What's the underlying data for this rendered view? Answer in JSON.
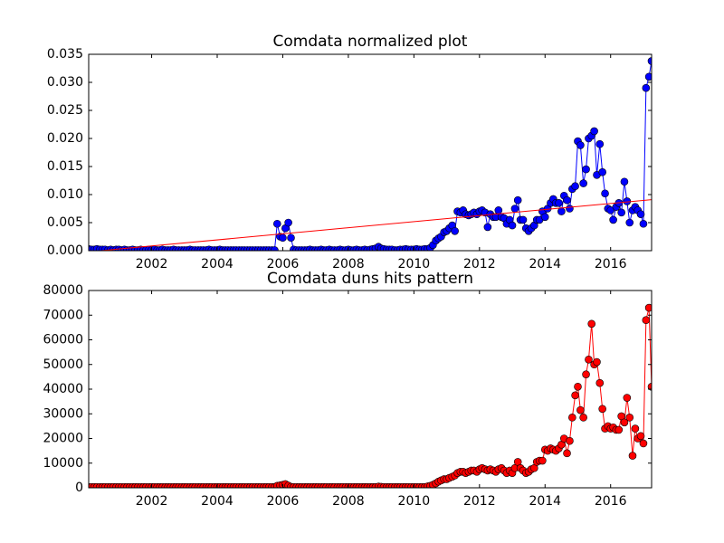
{
  "chart_data": [
    {
      "type": "line",
      "title": "Comdata normalized plot",
      "x": [
        2000.08,
        2000.17,
        2000.25,
        2000.33,
        2000.42,
        2000.5,
        2000.58,
        2000.67,
        2000.75,
        2000.83,
        2000.92,
        2001,
        2001.08,
        2001.17,
        2001.25,
        2001.33,
        2001.42,
        2001.5,
        2001.58,
        2001.67,
        2001.75,
        2001.83,
        2001.92,
        2002,
        2002.08,
        2002.17,
        2002.25,
        2002.33,
        2002.42,
        2002.5,
        2002.58,
        2002.67,
        2002.75,
        2002.83,
        2002.92,
        2003,
        2003.08,
        2003.17,
        2003.25,
        2003.33,
        2003.42,
        2003.5,
        2003.58,
        2003.67,
        2003.75,
        2003.83,
        2003.92,
        2004,
        2004.08,
        2004.17,
        2004.25,
        2004.33,
        2004.42,
        2004.5,
        2004.58,
        2004.67,
        2004.75,
        2004.83,
        2004.92,
        2005,
        2005.08,
        2005.17,
        2005.25,
        2005.33,
        2005.42,
        2005.5,
        2005.58,
        2005.67,
        2005.75,
        2005.83,
        2005.92,
        2006,
        2006.08,
        2006.17,
        2006.25,
        2006.33,
        2006.42,
        2006.5,
        2006.58,
        2006.67,
        2006.75,
        2006.83,
        2006.92,
        2007,
        2007.08,
        2007.17,
        2007.25,
        2007.33,
        2007.42,
        2007.5,
        2007.58,
        2007.67,
        2007.75,
        2007.83,
        2007.92,
        2008,
        2008.08,
        2008.17,
        2008.25,
        2008.33,
        2008.42,
        2008.5,
        2008.58,
        2008.67,
        2008.75,
        2008.83,
        2008.92,
        2009,
        2009.08,
        2009.17,
        2009.25,
        2009.33,
        2009.42,
        2009.5,
        2009.58,
        2009.67,
        2009.75,
        2009.83,
        2009.92,
        2010,
        2010.08,
        2010.17,
        2010.25,
        2010.33,
        2010.42,
        2010.5,
        2010.58,
        2010.67,
        2010.75,
        2010.83,
        2010.92,
        2011,
        2011.08,
        2011.17,
        2011.25,
        2011.33,
        2011.42,
        2011.5,
        2011.58,
        2011.67,
        2011.75,
        2011.83,
        2011.92,
        2012,
        2012.08,
        2012.17,
        2012.25,
        2012.33,
        2012.42,
        2012.5,
        2012.58,
        2012.67,
        2012.75,
        2012.83,
        2012.92,
        2013,
        2013.08,
        2013.17,
        2013.25,
        2013.33,
        2013.42,
        2013.5,
        2013.58,
        2013.67,
        2013.75,
        2013.83,
        2013.92,
        2014,
        2014.08,
        2014.17,
        2014.25,
        2014.33,
        2014.42,
        2014.5,
        2014.58,
        2014.67,
        2014.75,
        2014.83,
        2014.92,
        2015,
        2015.08,
        2015.17,
        2015.25,
        2015.33,
        2015.42,
        2015.5,
        2015.58,
        2015.67,
        2015.75,
        2015.83,
        2015.92,
        2016,
        2016.08,
        2016.17,
        2016.25,
        2016.33,
        2016.42,
        2016.5,
        2016.58,
        2016.67,
        2016.75,
        2016.83,
        2016.92,
        2017,
        2017.08,
        2017.17,
        2017.25
      ],
      "series": [
        {
          "color": "#0000ff",
          "marker": true,
          "values": [
            0.0003,
            0.0002,
            0.0002,
            0.0003,
            0.0002,
            0.0002,
            0.0002,
            0.0001,
            0.0002,
            0.0001,
            0.0002,
            0.0002,
            0.0001,
            0.0002,
            0.0001,
            0.0001,
            0.0002,
            0.0001,
            0.0001,
            0.0002,
            0.0001,
            0.0001,
            0.0002,
            0.0001,
            0.0002,
            0.0001,
            0.0001,
            0.0002,
            0.0001,
            0.0001,
            0.0001,
            0.0002,
            0.0001,
            0.0001,
            0.0001,
            0.0001,
            0.0001,
            0.0002,
            0.0001,
            0.0001,
            0.0001,
            0.0001,
            0.0001,
            0.0001,
            0.0002,
            0.0001,
            0.0001,
            0.0001,
            0.0002,
            0.0001,
            0.0001,
            0.0001,
            0.0001,
            0.0001,
            0.0001,
            0.0001,
            0.0001,
            0.0001,
            0.0001,
            0.0001,
            0.0001,
            0.0001,
            0.0001,
            0.0001,
            0.0001,
            0.0001,
            0.0001,
            0.0001,
            0.0001,
            0.0048,
            0.0025,
            0.0023,
            0.004,
            0.005,
            0.0023,
            0.0002,
            0.0001,
            0.0001,
            0.0001,
            0.0001,
            0.0001,
            0.0002,
            0.0001,
            0.0001,
            0.0001,
            0.0002,
            0.0001,
            0.0001,
            0.0002,
            0.0001,
            0.0001,
            0.0001,
            0.0002,
            0.0001,
            0.0001,
            0.0002,
            0.0001,
            0.0001,
            0.0002,
            0.0001,
            0.0001,
            0.0002,
            0.0001,
            0.0002,
            0.0003,
            0.0004,
            0.0007,
            0.0004,
            0.0003,
            0.0002,
            0.0002,
            0.0002,
            0.0001,
            0.0001,
            0.0002,
            0.0002,
            0.0003,
            0.0002,
            0.0002,
            0.0002,
            0.0003,
            0.0002,
            0.0002,
            0.0003,
            0.0003,
            0.0005,
            0.001,
            0.0018,
            0.0022,
            0.0025,
            0.0033,
            0.0035,
            0.004,
            0.0045,
            0.0035,
            0.007,
            0.0068,
            0.0072,
            0.0065,
            0.0063,
            0.0065,
            0.0068,
            0.0065,
            0.007,
            0.0072,
            0.0068,
            0.0042,
            0.0065,
            0.006,
            0.006,
            0.0072,
            0.006,
            0.0058,
            0.0048,
            0.0055,
            0.0045,
            0.0075,
            0.009,
            0.0055,
            0.0055,
            0.004,
            0.0035,
            0.004,
            0.0045,
            0.0055,
            0.0055,
            0.007,
            0.006,
            0.0075,
            0.0085,
            0.0092,
            0.0085,
            0.0085,
            0.007,
            0.0098,
            0.009,
            0.0075,
            0.011,
            0.0115,
            0.0195,
            0.0188,
            0.012,
            0.0145,
            0.02,
            0.0205,
            0.0213,
            0.0135,
            0.019,
            0.014,
            0.0102,
            0.0075,
            0.0072,
            0.0055,
            0.0078,
            0.0085,
            0.0068,
            0.0123,
            0.0088,
            0.005,
            0.0072,
            0.0078,
            0.0072,
            0.0065,
            0.0048,
            0.029,
            0.031,
            0.0338
          ]
        },
        {
          "color": "#ff0000",
          "marker": false,
          "x": [
            2000.08,
            2017.25
          ],
          "values": [
            -0.0002,
            0.0091
          ]
        }
      ],
      "xlim": [
        2000.08,
        2017.25
      ],
      "xticks": [
        2002,
        2004,
        2006,
        2008,
        2010,
        2012,
        2014,
        2016
      ],
      "ylim": [
        0,
        0.035
      ],
      "yticks": [
        {
          "value": 0,
          "label": "0.000"
        },
        {
          "value": 0.005,
          "label": "0.005"
        },
        {
          "value": 0.01,
          "label": "0.010"
        },
        {
          "value": 0.015,
          "label": "0.015"
        },
        {
          "value": 0.02,
          "label": "0.020"
        },
        {
          "value": 0.025,
          "label": "0.025"
        },
        {
          "value": 0.03,
          "label": "0.030"
        },
        {
          "value": 0.035,
          "label": "0.035"
        }
      ]
    },
    {
      "type": "line",
      "title": "Comdata duns hits pattern",
      "x": [
        2000.08,
        2000.17,
        2000.25,
        2000.33,
        2000.42,
        2000.5,
        2000.58,
        2000.67,
        2000.75,
        2000.83,
        2000.92,
        2001,
        2001.08,
        2001.17,
        2001.25,
        2001.33,
        2001.42,
        2001.5,
        2001.58,
        2001.67,
        2001.75,
        2001.83,
        2001.92,
        2002,
        2002.08,
        2002.17,
        2002.25,
        2002.33,
        2002.42,
        2002.5,
        2002.58,
        2002.67,
        2002.75,
        2002.83,
        2002.92,
        2003,
        2003.08,
        2003.17,
        2003.25,
        2003.33,
        2003.42,
        2003.5,
        2003.58,
        2003.67,
        2003.75,
        2003.83,
        2003.92,
        2004,
        2004.08,
        2004.17,
        2004.25,
        2004.33,
        2004.42,
        2004.5,
        2004.58,
        2004.67,
        2004.75,
        2004.83,
        2004.92,
        2005,
        2005.08,
        2005.17,
        2005.25,
        2005.33,
        2005.42,
        2005.5,
        2005.58,
        2005.67,
        2005.75,
        2005.83,
        2005.92,
        2006,
        2006.08,
        2006.17,
        2006.25,
        2006.33,
        2006.42,
        2006.5,
        2006.58,
        2006.67,
        2006.75,
        2006.83,
        2006.92,
        2007,
        2007.08,
        2007.17,
        2007.25,
        2007.33,
        2007.42,
        2007.5,
        2007.58,
        2007.67,
        2007.75,
        2007.83,
        2007.92,
        2008,
        2008.08,
        2008.17,
        2008.25,
        2008.33,
        2008.42,
        2008.5,
        2008.58,
        2008.67,
        2008.75,
        2008.83,
        2008.92,
        2009,
        2009.08,
        2009.17,
        2009.25,
        2009.33,
        2009.42,
        2009.5,
        2009.58,
        2009.67,
        2009.75,
        2009.83,
        2009.92,
        2010,
        2010.08,
        2010.17,
        2010.25,
        2010.33,
        2010.42,
        2010.5,
        2010.58,
        2010.67,
        2010.75,
        2010.83,
        2010.92,
        2011,
        2011.08,
        2011.17,
        2011.25,
        2011.33,
        2011.42,
        2011.5,
        2011.58,
        2011.67,
        2011.75,
        2011.83,
        2011.92,
        2012,
        2012.08,
        2012.17,
        2012.25,
        2012.33,
        2012.42,
        2012.5,
        2012.58,
        2012.67,
        2012.75,
        2012.83,
        2012.92,
        2013,
        2013.08,
        2013.17,
        2013.25,
        2013.33,
        2013.42,
        2013.5,
        2013.58,
        2013.67,
        2013.75,
        2013.83,
        2013.92,
        2014,
        2014.08,
        2014.17,
        2014.25,
        2014.33,
        2014.42,
        2014.5,
        2014.58,
        2014.67,
        2014.75,
        2014.83,
        2014.92,
        2015,
        2015.08,
        2015.17,
        2015.25,
        2015.33,
        2015.42,
        2015.5,
        2015.58,
        2015.67,
        2015.75,
        2015.83,
        2015.92,
        2016,
        2016.08,
        2016.17,
        2016.25,
        2016.33,
        2016.42,
        2016.5,
        2016.58,
        2016.67,
        2016.75,
        2016.83,
        2016.92,
        2017,
        2017.08,
        2017.17,
        2017.25
      ],
      "series": [
        {
          "color": "#ff0000",
          "marker": true,
          "values": [
            300,
            300,
            300,
            300,
            300,
            300,
            300,
            300,
            300,
            300,
            300,
            300,
            300,
            300,
            300,
            300,
            300,
            300,
            300,
            300,
            300,
            300,
            300,
            300,
            300,
            300,
            300,
            300,
            300,
            300,
            300,
            300,
            300,
            300,
            300,
            300,
            300,
            300,
            300,
            300,
            300,
            300,
            300,
            300,
            300,
            300,
            300,
            300,
            300,
            300,
            300,
            300,
            300,
            300,
            300,
            300,
            300,
            300,
            300,
            300,
            300,
            300,
            300,
            300,
            300,
            300,
            300,
            300,
            300,
            800,
            1000,
            1200,
            1500,
            900,
            400,
            300,
            300,
            300,
            300,
            300,
            300,
            300,
            300,
            300,
            300,
            300,
            300,
            300,
            300,
            300,
            300,
            300,
            300,
            300,
            300,
            300,
            300,
            300,
            300,
            300,
            300,
            300,
            300,
            300,
            300,
            300,
            500,
            400,
            300,
            300,
            300,
            300,
            300,
            300,
            300,
            300,
            300,
            300,
            300,
            300,
            300,
            300,
            300,
            300,
            600,
            800,
            1200,
            1800,
            2500,
            3000,
            3500,
            3500,
            4000,
            4500,
            5000,
            6000,
            6500,
            6500,
            6000,
            6500,
            7000,
            7000,
            6500,
            7500,
            8000,
            7500,
            7000,
            7500,
            7000,
            6500,
            7500,
            8000,
            7000,
            6000,
            7000,
            6000,
            8000,
            10500,
            8000,
            7000,
            6000,
            6500,
            7500,
            8000,
            10500,
            11000,
            11000,
            15500,
            15000,
            16000,
            15500,
            15000,
            16000,
            17500,
            20000,
            14000,
            19000,
            28500,
            37500,
            41000,
            31500,
            28500,
            46000,
            52000,
            66500,
            50000,
            51000,
            42500,
            32000,
            24000,
            25000,
            24000,
            24500,
            23500,
            23500,
            29000,
            26500,
            36500,
            28500,
            13000,
            24000,
            20000,
            21000,
            18000,
            68000,
            73000,
            41000
          ]
        }
      ],
      "xlim": [
        2000.08,
        2017.25
      ],
      "xticks": [
        2002,
        2004,
        2006,
        2008,
        2010,
        2012,
        2014,
        2016
      ],
      "ylim": [
        0,
        80000
      ],
      "yticks": [
        0,
        10000,
        20000,
        30000,
        40000,
        50000,
        60000,
        70000,
        80000
      ]
    }
  ]
}
